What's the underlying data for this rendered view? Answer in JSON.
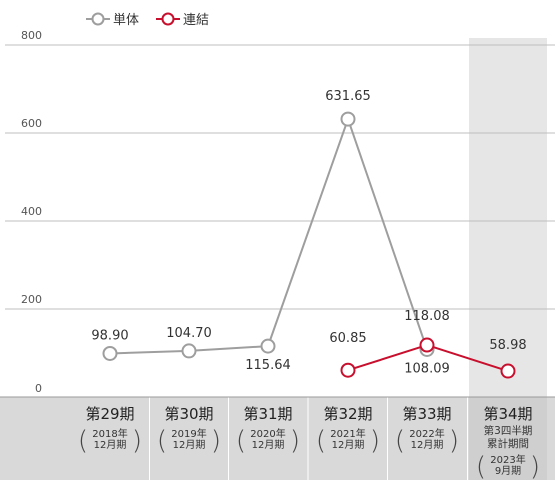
{
  "chart_data": {
    "type": "line",
    "categories": [
      {
        "main": "第29期",
        "sub": [
          "2018年",
          "12月期"
        ]
      },
      {
        "main": "第30期",
        "sub": [
          "2019年",
          "12月期"
        ]
      },
      {
        "main": "第31期",
        "sub": [
          "2020年",
          "12月期"
        ]
      },
      {
        "main": "第32期",
        "sub": [
          "2021年",
          "12月期"
        ]
      },
      {
        "main": "第33期",
        "sub": [
          "2022年",
          "12月期"
        ]
      },
      {
        "main": "第34期",
        "pre": [
          "第3四半期",
          "累計期間"
        ],
        "sub": [
          "2023年",
          "9月期"
        ]
      }
    ],
    "series": [
      {
        "name": "単体",
        "color": "#9e9e9e",
        "values": [
          98.9,
          104.7,
          115.64,
          631.65,
          108.09,
          null
        ],
        "labels": [
          "98.90",
          "104.70",
          "115.64",
          "631.65",
          "108.09",
          null
        ]
      },
      {
        "name": "連結",
        "color": "#c8102e",
        "values": [
          null,
          null,
          null,
          60.85,
          118.08,
          58.98
        ],
        "labels": [
          null,
          null,
          null,
          "60.85",
          "118.08",
          "58.98"
        ]
      }
    ],
    "ylim": [
      0,
      800
    ],
    "yticks": [
      0,
      200,
      400,
      600,
      800
    ],
    "grid": true,
    "highlight_category": 5,
    "highlight_color": "#e6e6e6",
    "legend": "top-left"
  },
  "colors": {
    "axis_band": "#d9d9d9",
    "grid": "#bfbfbf"
  }
}
